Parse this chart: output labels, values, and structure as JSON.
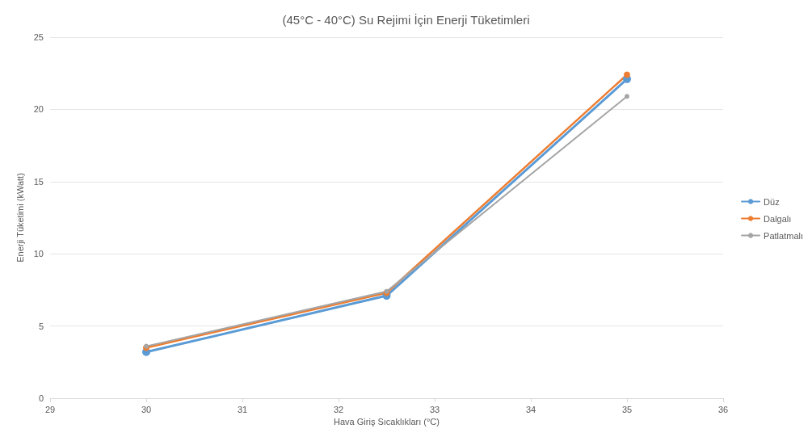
{
  "chart_data": {
    "type": "line",
    "title": "(45°C - 40°C) Su Rejimi İçin Enerji Tüketimleri",
    "xlabel": "Hava Giriş Sıcaklıkları (°C)",
    "ylabel": "Enerji Tüketimi (kWatt)",
    "x": [
      30,
      32.5,
      35
    ],
    "series": [
      {
        "name": "Düz",
        "color": "#5b9bd5",
        "values": [
          3.2,
          7.1,
          22.1
        ]
      },
      {
        "name": "Dalgalı",
        "color": "#ed7d31",
        "values": [
          3.5,
          7.3,
          22.4
        ]
      },
      {
        "name": "Patlatmalı",
        "color": "#a5a5a5",
        "values": [
          3.6,
          7.4,
          20.9
        ]
      }
    ],
    "xlim": [
      29,
      36
    ],
    "xticks": [
      29,
      30,
      31,
      32,
      33,
      34,
      35,
      36
    ],
    "ylim": [
      0,
      25
    ],
    "yticks": [
      0,
      5,
      10,
      15,
      20,
      25
    ],
    "grid": "y",
    "legend": "right",
    "marker": "circle",
    "line_style": "solid"
  }
}
